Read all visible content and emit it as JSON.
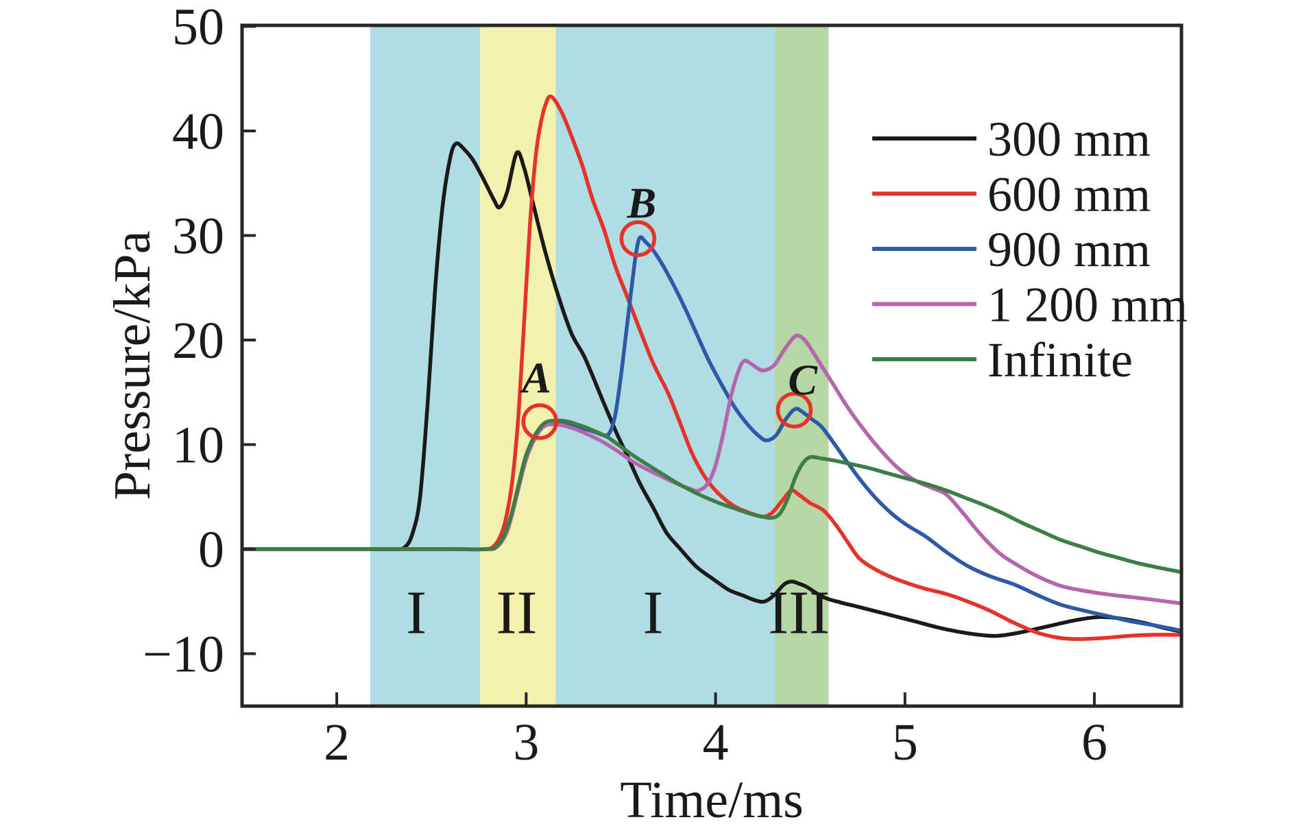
{
  "figure": {
    "x_axis": {
      "label": "Time/ms",
      "tick_labels": [
        "2",
        "3",
        "4",
        "5",
        "6"
      ],
      "tick_values": [
        2,
        3,
        4,
        5,
        6
      ],
      "range": [
        1.5,
        6.46
      ]
    },
    "y_axis": {
      "label": "Pressure/kPa",
      "tick_labels": [
        "−10",
        "0",
        "10",
        "20",
        "30",
        "40",
        "50"
      ],
      "tick_values": [
        -10,
        0,
        10,
        20,
        30,
        40,
        50
      ],
      "range": [
        -15,
        50.6
      ]
    },
    "legend": {
      "items": [
        {
          "label": "300 mm",
          "color": "#1a1a1a"
        },
        {
          "label": "600 mm",
          "color": "#e6332a"
        },
        {
          "label": "900 mm",
          "color": "#2e59a8"
        },
        {
          "label": "1 200 mm",
          "color": "#b565ad"
        },
        {
          "label": "Infinite",
          "color": "#3d7d46"
        }
      ]
    },
    "regions": [
      {
        "label": "I",
        "from": 2.177,
        "to": 2.757,
        "color": "#b0dde4",
        "label_t": 2.42
      },
      {
        "label": "II",
        "from": 2.757,
        "to": 3.156,
        "color": "#f4f1ad",
        "label_t": 2.95
      },
      {
        "label": "I",
        "from": 3.156,
        "to": 4.315,
        "color": "#b0dde4",
        "label_t": 3.67
      },
      {
        "label": "III",
        "from": 4.315,
        "to": 4.597,
        "color": "#b7d7a5",
        "label_t": 4.44
      }
    ],
    "region_label_v": -6.0,
    "annotations": [
      {
        "label": "A",
        "circle_t": 3.072,
        "circle_v": 12.2,
        "label_t": 3.055,
        "label_v": 15.0
      },
      {
        "label": "B",
        "circle_t": 3.59,
        "circle_v": 29.7,
        "label_t": 3.61,
        "label_v": 31.7
      },
      {
        "label": "C",
        "circle_t": 4.416,
        "circle_v": 13.3,
        "label_t": 4.46,
        "label_v": 14.8
      }
    ],
    "annotation_color": "#e6332a"
  },
  "chart_data": {
    "type": "line",
    "title": "",
    "xlabel": "Time/ms",
    "ylabel": "Pressure/kPa",
    "xlim": [
      1.5,
      6.46
    ],
    "ylim": [
      -15,
      50.6
    ],
    "grid": false,
    "legend_position": "upper right",
    "series": [
      {
        "name": "300 mm",
        "color": "#1a1a1a",
        "points": [
          [
            1.5,
            0
          ],
          [
            1.8,
            0
          ],
          [
            2.1,
            0
          ],
          [
            2.3,
            0
          ],
          [
            2.36,
            0.2
          ],
          [
            2.4,
            1.5
          ],
          [
            2.44,
            5
          ],
          [
            2.48,
            14
          ],
          [
            2.52,
            25
          ],
          [
            2.56,
            33
          ],
          [
            2.6,
            37.5
          ],
          [
            2.63,
            38.8
          ],
          [
            2.67,
            38.3
          ],
          [
            2.72,
            37.2
          ],
          [
            2.78,
            35.2
          ],
          [
            2.83,
            33.4
          ],
          [
            2.86,
            32.7
          ],
          [
            2.9,
            34.2
          ],
          [
            2.95,
            37.9
          ],
          [
            2.99,
            36.4
          ],
          [
            3.04,
            32.8
          ],
          [
            3.1,
            28.5
          ],
          [
            3.17,
            24.2
          ],
          [
            3.24,
            20.6
          ],
          [
            3.31,
            18.3
          ],
          [
            3.4,
            14.4
          ],
          [
            3.48,
            11
          ],
          [
            3.53,
            9.1
          ],
          [
            3.6,
            6.3
          ],
          [
            3.67,
            4
          ],
          [
            3.74,
            1.6
          ],
          [
            3.81,
            0.1
          ],
          [
            3.9,
            -1.7
          ],
          [
            3.99,
            -2.9
          ],
          [
            4.07,
            -3.9
          ],
          [
            4.14,
            -4.4
          ],
          [
            4.21,
            -4.9
          ],
          [
            4.26,
            -5
          ],
          [
            4.31,
            -4.4
          ],
          [
            4.36,
            -3.4
          ],
          [
            4.4,
            -3.1
          ],
          [
            4.44,
            -3.3
          ],
          [
            4.48,
            -3.6
          ],
          [
            4.57,
            -4.6
          ],
          [
            4.66,
            -5.1
          ],
          [
            4.75,
            -5.5
          ],
          [
            4.9,
            -6.2
          ],
          [
            5.05,
            -6.9
          ],
          [
            5.2,
            -7.6
          ],
          [
            5.35,
            -8.1
          ],
          [
            5.48,
            -8.3
          ],
          [
            5.6,
            -8
          ],
          [
            5.75,
            -7.4
          ],
          [
            5.9,
            -6.8
          ],
          [
            6.02,
            -6.5
          ],
          [
            6.12,
            -6.6
          ],
          [
            6.25,
            -7
          ],
          [
            6.36,
            -7.5
          ],
          [
            6.46,
            -7.9
          ]
        ]
      },
      {
        "name": "600 mm",
        "color": "#e6332a",
        "points": [
          [
            1.5,
            0
          ],
          [
            1.9,
            0
          ],
          [
            2.3,
            0
          ],
          [
            2.6,
            0
          ],
          [
            2.78,
            0
          ],
          [
            2.83,
            0.3
          ],
          [
            2.87,
            1.5
          ],
          [
            2.9,
            3.5
          ],
          [
            2.93,
            7
          ],
          [
            2.96,
            13
          ],
          [
            2.99,
            22
          ],
          [
            3.02,
            31
          ],
          [
            3.05,
            37.5
          ],
          [
            3.08,
            41
          ],
          [
            3.11,
            42.9
          ],
          [
            3.13,
            43.3
          ],
          [
            3.16,
            42.7
          ],
          [
            3.2,
            41.3
          ],
          [
            3.25,
            39
          ],
          [
            3.3,
            36.5
          ],
          [
            3.35,
            33.5
          ],
          [
            3.41,
            30.6
          ],
          [
            3.47,
            27.1
          ],
          [
            3.53,
            24.3
          ],
          [
            3.6,
            21
          ],
          [
            3.67,
            17.8
          ],
          [
            3.75,
            14.9
          ],
          [
            3.81,
            12.2
          ],
          [
            3.87,
            9.4
          ],
          [
            3.93,
            7.3
          ],
          [
            3.99,
            5.8
          ],
          [
            4.06,
            4.6
          ],
          [
            4.12,
            3.9
          ],
          [
            4.19,
            3.4
          ],
          [
            4.25,
            3.1
          ],
          [
            4.3,
            3.5
          ],
          [
            4.35,
            4.6
          ],
          [
            4.4,
            5.6
          ],
          [
            4.44,
            5.2
          ],
          [
            4.5,
            4.4
          ],
          [
            4.57,
            3.7
          ],
          [
            4.64,
            2.2
          ],
          [
            4.7,
            0.6
          ],
          [
            4.76,
            -0.9
          ],
          [
            4.84,
            -1.9
          ],
          [
            4.93,
            -2.7
          ],
          [
            5.02,
            -3.3
          ],
          [
            5.11,
            -3.8
          ],
          [
            5.22,
            -4.3
          ],
          [
            5.33,
            -5
          ],
          [
            5.45,
            -5.9
          ],
          [
            5.57,
            -7
          ],
          [
            5.7,
            -8
          ],
          [
            5.82,
            -8.5
          ],
          [
            5.92,
            -8.6
          ],
          [
            6.05,
            -8.5
          ],
          [
            6.18,
            -8.3
          ],
          [
            6.3,
            -8.2
          ],
          [
            6.46,
            -8.2
          ]
        ]
      },
      {
        "name": "900 mm",
        "color": "#2e59a8",
        "points": [
          [
            1.5,
            0
          ],
          [
            1.9,
            0
          ],
          [
            2.3,
            0
          ],
          [
            2.6,
            0
          ],
          [
            2.8,
            0
          ],
          [
            2.85,
            0.3
          ],
          [
            2.89,
            1.4
          ],
          [
            2.92,
            3
          ],
          [
            2.96,
            5.9
          ],
          [
            3,
            8.7
          ],
          [
            3.05,
            10.8
          ],
          [
            3.1,
            11.9
          ],
          [
            3.16,
            12.05
          ],
          [
            3.24,
            11.9
          ],
          [
            3.31,
            11.5
          ],
          [
            3.37,
            11.15
          ],
          [
            3.41,
            10.9
          ],
          [
            3.44,
            11.1
          ],
          [
            3.47,
            12.8
          ],
          [
            3.5,
            16.5
          ],
          [
            3.53,
            21
          ],
          [
            3.56,
            25.5
          ],
          [
            3.58,
            28.3
          ],
          [
            3.6,
            29.8
          ],
          [
            3.63,
            29.4
          ],
          [
            3.67,
            28.6
          ],
          [
            3.72,
            27.2
          ],
          [
            3.78,
            25.2
          ],
          [
            3.84,
            23
          ],
          [
            3.89,
            21
          ],
          [
            3.96,
            18.2
          ],
          [
            4.03,
            15.8
          ],
          [
            4.1,
            13.6
          ],
          [
            4.17,
            11.9
          ],
          [
            4.23,
            10.8
          ],
          [
            4.27,
            10.4
          ],
          [
            4.32,
            10.9
          ],
          [
            4.37,
            12.4
          ],
          [
            4.42,
            13.4
          ],
          [
            4.46,
            13.1
          ],
          [
            4.51,
            12.4
          ],
          [
            4.56,
            11.7
          ],
          [
            4.63,
            10
          ],
          [
            4.7,
            8.2
          ],
          [
            4.77,
            6.5
          ],
          [
            4.85,
            4.8
          ],
          [
            4.93,
            3.4
          ],
          [
            5.01,
            2.3
          ],
          [
            5.11,
            1.2
          ],
          [
            5.22,
            -0.3
          ],
          [
            5.33,
            -1.6
          ],
          [
            5.45,
            -2.6
          ],
          [
            5.58,
            -3.4
          ],
          [
            5.7,
            -4.4
          ],
          [
            5.82,
            -5.3
          ],
          [
            5.95,
            -5.9
          ],
          [
            6.07,
            -6.4
          ],
          [
            6.19,
            -6.9
          ],
          [
            6.32,
            -7.3
          ],
          [
            6.46,
            -7.8
          ]
        ]
      },
      {
        "name": "1 200 mm",
        "color": "#b565ad",
        "points": [
          [
            1.5,
            0
          ],
          [
            1.9,
            0
          ],
          [
            2.3,
            0
          ],
          [
            2.6,
            0
          ],
          [
            2.8,
            0
          ],
          [
            2.85,
            0.3
          ],
          [
            2.89,
            1.3
          ],
          [
            2.92,
            2.9
          ],
          [
            2.96,
            5.8
          ],
          [
            3,
            8.6
          ],
          [
            3.05,
            10.7
          ],
          [
            3.1,
            11.8
          ],
          [
            3.17,
            11.9
          ],
          [
            3.24,
            11.6
          ],
          [
            3.31,
            11.1
          ],
          [
            3.4,
            10.3
          ],
          [
            3.48,
            9.4
          ],
          [
            3.56,
            8.4
          ],
          [
            3.63,
            7.7
          ],
          [
            3.71,
            7
          ],
          [
            3.79,
            6.3
          ],
          [
            3.86,
            5.8
          ],
          [
            3.91,
            5.6
          ],
          [
            3.96,
            6.3
          ],
          [
            4,
            8
          ],
          [
            4.04,
            11
          ],
          [
            4.08,
            14.5
          ],
          [
            4.12,
            17
          ],
          [
            4.15,
            18
          ],
          [
            4.19,
            17.7
          ],
          [
            4.23,
            17.2
          ],
          [
            4.26,
            17.1
          ],
          [
            4.31,
            17.6
          ],
          [
            4.36,
            19
          ],
          [
            4.41,
            20.2
          ],
          [
            4.44,
            20.4
          ],
          [
            4.48,
            19.8
          ],
          [
            4.54,
            18.1
          ],
          [
            4.62,
            15.8
          ],
          [
            4.7,
            13.5
          ],
          [
            4.78,
            11.5
          ],
          [
            4.87,
            9.5
          ],
          [
            4.96,
            7.8
          ],
          [
            5.06,
            6.5
          ],
          [
            5.15,
            5.8
          ],
          [
            5.22,
            5.2
          ],
          [
            5.3,
            3.6
          ],
          [
            5.4,
            1.4
          ],
          [
            5.5,
            -0.4
          ],
          [
            5.6,
            -1.6
          ],
          [
            5.7,
            -2.6
          ],
          [
            5.82,
            -3.5
          ],
          [
            5.95,
            -4
          ],
          [
            6.1,
            -4.4
          ],
          [
            6.25,
            -4.7
          ],
          [
            6.46,
            -5.2
          ]
        ]
      },
      {
        "name": "Infinite",
        "color": "#3d7d46",
        "points": [
          [
            1.5,
            0
          ],
          [
            1.9,
            0
          ],
          [
            2.3,
            0
          ],
          [
            2.6,
            0
          ],
          [
            2.8,
            0
          ],
          [
            2.84,
            0.2
          ],
          [
            2.88,
            1.2
          ],
          [
            2.92,
            3.2
          ],
          [
            2.96,
            6.2
          ],
          [
            3,
            9
          ],
          [
            3.05,
            11
          ],
          [
            3.1,
            12.1
          ],
          [
            3.16,
            12.3
          ],
          [
            3.22,
            12.2
          ],
          [
            3.29,
            11.8
          ],
          [
            3.36,
            11.3
          ],
          [
            3.43,
            10.7
          ],
          [
            3.5,
            9.8
          ],
          [
            3.57,
            8.9
          ],
          [
            3.63,
            8.2
          ],
          [
            3.7,
            7.4
          ],
          [
            3.78,
            6.5
          ],
          [
            3.86,
            5.7
          ],
          [
            3.94,
            5
          ],
          [
            4.02,
            4.4
          ],
          [
            4.1,
            3.9
          ],
          [
            4.18,
            3.4
          ],
          [
            4.25,
            3.1
          ],
          [
            4.3,
            3
          ],
          [
            4.34,
            3.4
          ],
          [
            4.38,
            4.8
          ],
          [
            4.42,
            6.8
          ],
          [
            4.46,
            8.2
          ],
          [
            4.5,
            8.8
          ],
          [
            4.55,
            8.7
          ],
          [
            4.62,
            8.5
          ],
          [
            4.7,
            8.2
          ],
          [
            4.8,
            7.8
          ],
          [
            4.9,
            7.3
          ],
          [
            5,
            6.8
          ],
          [
            5.1,
            6.3
          ],
          [
            5.22,
            5.6
          ],
          [
            5.32,
            4.9
          ],
          [
            5.42,
            4.2
          ],
          [
            5.52,
            3.4
          ],
          [
            5.62,
            2.5
          ],
          [
            5.72,
            1.7
          ],
          [
            5.82,
            0.9
          ],
          [
            5.92,
            0.3
          ],
          [
            6.02,
            -0.3
          ],
          [
            6.12,
            -0.8
          ],
          [
            6.22,
            -1.3
          ],
          [
            6.32,
            -1.7
          ],
          [
            6.46,
            -2.2
          ]
        ]
      }
    ]
  }
}
